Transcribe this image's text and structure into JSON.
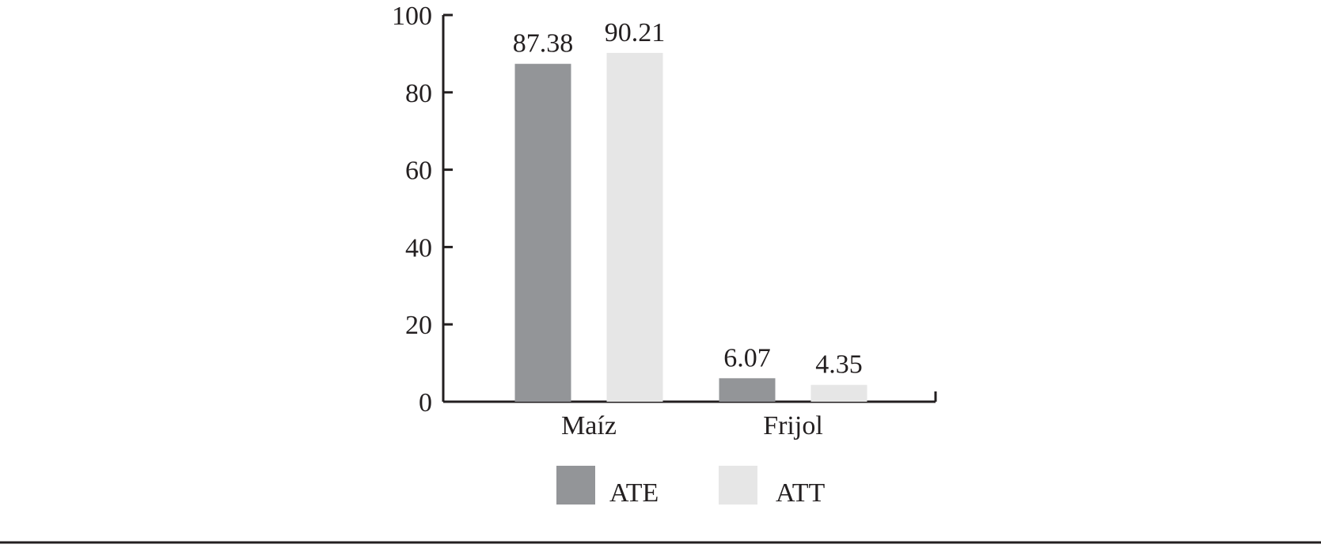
{
  "chart_data": {
    "type": "bar",
    "categories": [
      "Maíz",
      "Frijol"
    ],
    "series": [
      {
        "name": "ATE",
        "values": [
          87.38,
          6.07
        ],
        "labels": [
          "87.38",
          "6.07"
        ],
        "color": "#939598"
      },
      {
        "name": "ATT",
        "values": [
          90.21,
          4.35
        ],
        "labels": [
          "90.21",
          "4.35"
        ],
        "color": "#e6e6e6"
      }
    ],
    "ylim": [
      0,
      100
    ],
    "yticks": [
      "0",
      "20",
      "40",
      "60",
      "80",
      "100"
    ],
    "grid": false,
    "legend_position": "bottom-center",
    "title": "",
    "xlabel": "",
    "ylabel": ""
  }
}
